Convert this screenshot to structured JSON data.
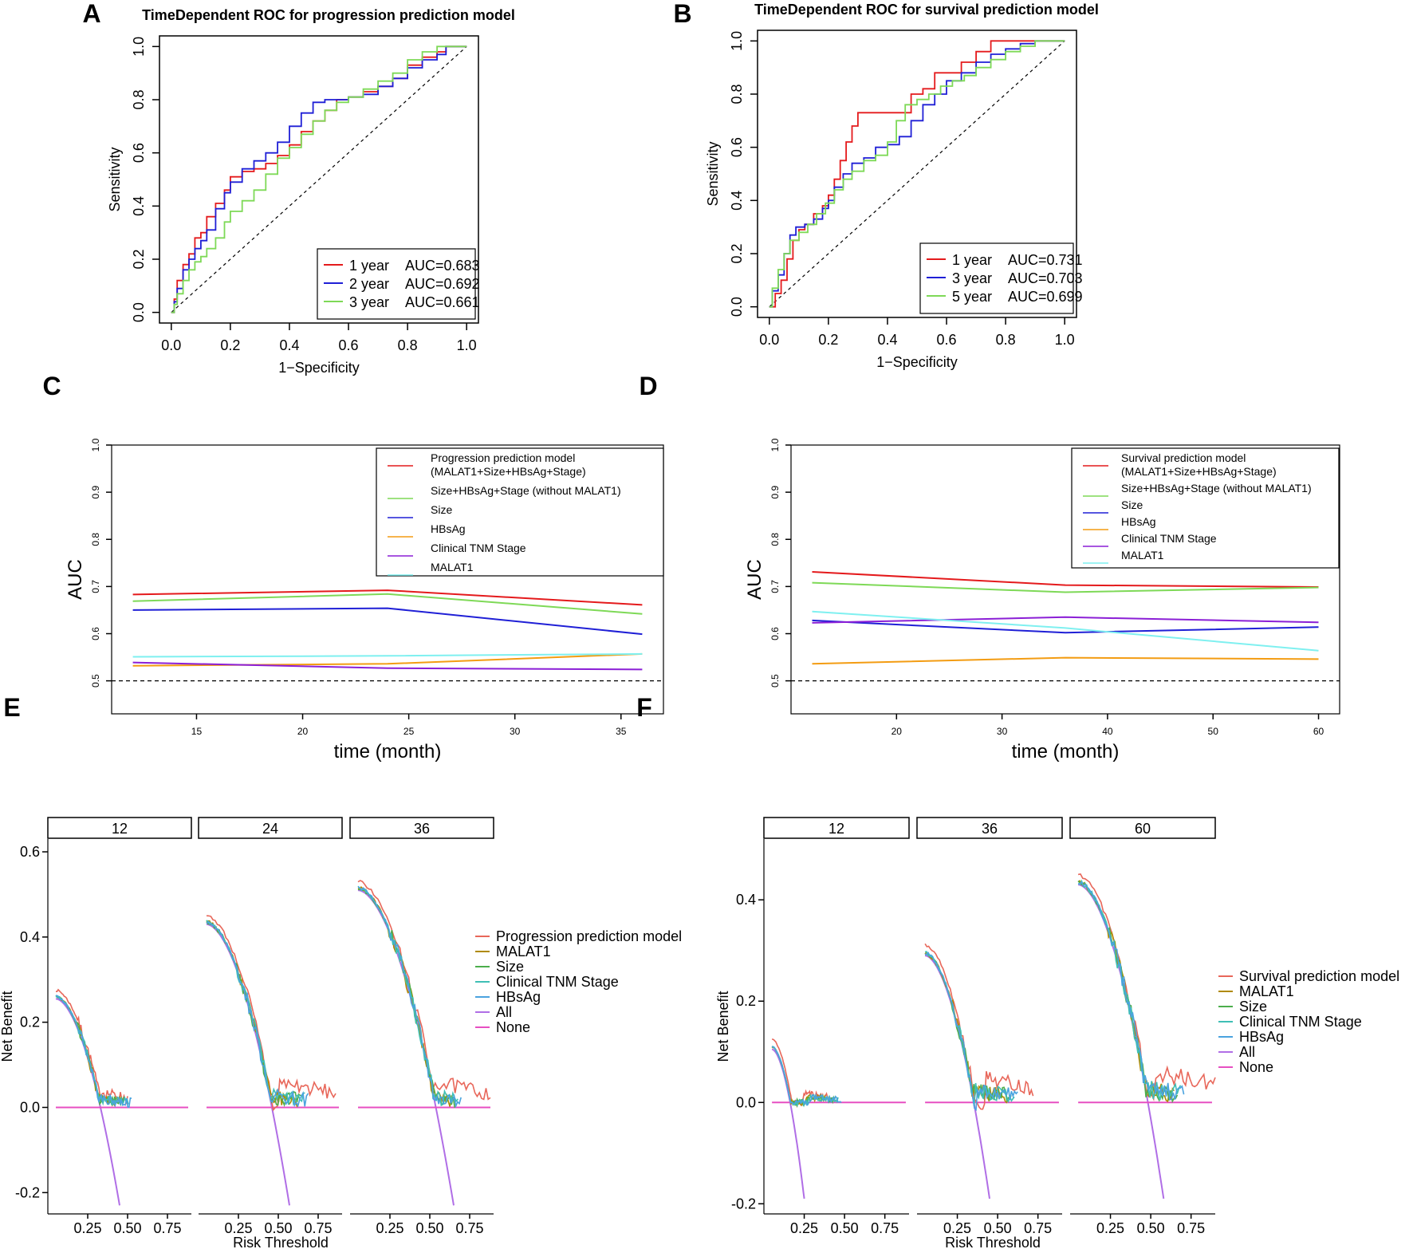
{
  "figure": {
    "panel_letters": [
      "A",
      "B",
      "C",
      "D",
      "E",
      "F"
    ]
  },
  "chart_data": [
    {
      "panel": "A",
      "type": "line",
      "title": "TimeDependent ROC for progression prediction model",
      "xlabel": "1−Specificity",
      "ylabel": "Sensitivity",
      "xlim": [
        0,
        1
      ],
      "ylim": [
        0,
        1
      ],
      "ticks": [
        "0.0",
        "0.2",
        "0.4",
        "0.6",
        "0.8",
        "1.0"
      ],
      "legend_position": "bottom-right",
      "series": [
        {
          "name": "1 year",
          "auc": "AUC=0.683",
          "color": "#e41a1c",
          "points": [
            [
              0,
              0
            ],
            [
              0.01,
              0.05
            ],
            [
              0.02,
              0.12
            ],
            [
              0.04,
              0.18
            ],
            [
              0.06,
              0.22
            ],
            [
              0.08,
              0.28
            ],
            [
              0.1,
              0.3
            ],
            [
              0.12,
              0.36
            ],
            [
              0.15,
              0.41
            ],
            [
              0.18,
              0.46
            ],
            [
              0.2,
              0.51
            ],
            [
              0.24,
              0.53
            ],
            [
              0.28,
              0.54
            ],
            [
              0.32,
              0.56
            ],
            [
              0.36,
              0.59
            ],
            [
              0.4,
              0.63
            ],
            [
              0.44,
              0.68
            ],
            [
              0.48,
              0.72
            ],
            [
              0.52,
              0.76
            ],
            [
              0.56,
              0.8
            ],
            [
              0.6,
              0.81
            ],
            [
              0.65,
              0.83
            ],
            [
              0.7,
              0.85
            ],
            [
              0.75,
              0.88
            ],
            [
              0.8,
              0.93
            ],
            [
              0.85,
              0.96
            ],
            [
              0.9,
              0.98
            ],
            [
              0.93,
              1.0
            ],
            [
              1.0,
              1.0
            ]
          ]
        },
        {
          "name": "2 year",
          "auc": "AUC=0.692",
          "color": "#1f1fd6",
          "points": [
            [
              0,
              0
            ],
            [
              0.01,
              0.04
            ],
            [
              0.02,
              0.09
            ],
            [
              0.04,
              0.16
            ],
            [
              0.06,
              0.2
            ],
            [
              0.08,
              0.24
            ],
            [
              0.1,
              0.27
            ],
            [
              0.12,
              0.31
            ],
            [
              0.15,
              0.39
            ],
            [
              0.18,
              0.45
            ],
            [
              0.2,
              0.49
            ],
            [
              0.24,
              0.54
            ],
            [
              0.28,
              0.57
            ],
            [
              0.32,
              0.6
            ],
            [
              0.36,
              0.64
            ],
            [
              0.4,
              0.7
            ],
            [
              0.44,
              0.75
            ],
            [
              0.48,
              0.79
            ],
            [
              0.52,
              0.8
            ],
            [
              0.56,
              0.8
            ],
            [
              0.6,
              0.81
            ],
            [
              0.65,
              0.82
            ],
            [
              0.7,
              0.85
            ],
            [
              0.75,
              0.88
            ],
            [
              0.8,
              0.92
            ],
            [
              0.85,
              0.95
            ],
            [
              0.9,
              0.97
            ],
            [
              0.93,
              1.0
            ],
            [
              1.0,
              1.0
            ]
          ]
        },
        {
          "name": "3 year",
          "auc": "AUC=0.661",
          "color": "#7ed957",
          "points": [
            [
              0,
              0
            ],
            [
              0.01,
              0.03
            ],
            [
              0.02,
              0.07
            ],
            [
              0.04,
              0.12
            ],
            [
              0.06,
              0.16
            ],
            [
              0.08,
              0.19
            ],
            [
              0.1,
              0.21
            ],
            [
              0.12,
              0.24
            ],
            [
              0.15,
              0.28
            ],
            [
              0.18,
              0.34
            ],
            [
              0.2,
              0.38
            ],
            [
              0.24,
              0.42
            ],
            [
              0.28,
              0.46
            ],
            [
              0.32,
              0.52
            ],
            [
              0.36,
              0.58
            ],
            [
              0.4,
              0.62
            ],
            [
              0.44,
              0.67
            ],
            [
              0.48,
              0.72
            ],
            [
              0.52,
              0.76
            ],
            [
              0.56,
              0.79
            ],
            [
              0.6,
              0.81
            ],
            [
              0.65,
              0.84
            ],
            [
              0.7,
              0.87
            ],
            [
              0.75,
              0.9
            ],
            [
              0.8,
              0.95
            ],
            [
              0.85,
              0.98
            ],
            [
              0.9,
              1.0
            ],
            [
              1.0,
              1.0
            ]
          ]
        }
      ]
    },
    {
      "panel": "B",
      "type": "line",
      "title": "TimeDependent ROC for survival prediction model",
      "xlabel": "1−Specificity",
      "ylabel": "Sensitivity",
      "xlim": [
        0,
        1
      ],
      "ylim": [
        0,
        1
      ],
      "ticks": [
        "0.0",
        "0.2",
        "0.4",
        "0.6",
        "0.8",
        "1.0"
      ],
      "legend_position": "bottom-right",
      "series": [
        {
          "name": "1 year",
          "auc": "AUC=0.731",
          "color": "#e41a1c",
          "points": [
            [
              0,
              0
            ],
            [
              0.02,
              0.05
            ],
            [
              0.04,
              0.1
            ],
            [
              0.06,
              0.18
            ],
            [
              0.08,
              0.25
            ],
            [
              0.1,
              0.29
            ],
            [
              0.12,
              0.31
            ],
            [
              0.15,
              0.35
            ],
            [
              0.18,
              0.38
            ],
            [
              0.2,
              0.42
            ],
            [
              0.22,
              0.48
            ],
            [
              0.24,
              0.55
            ],
            [
              0.26,
              0.62
            ],
            [
              0.28,
              0.68
            ],
            [
              0.3,
              0.73
            ],
            [
              0.35,
              0.73
            ],
            [
              0.4,
              0.73
            ],
            [
              0.44,
              0.73
            ],
            [
              0.48,
              0.8
            ],
            [
              0.52,
              0.82
            ],
            [
              0.56,
              0.88
            ],
            [
              0.6,
              0.88
            ],
            [
              0.65,
              0.92
            ],
            [
              0.7,
              0.96
            ],
            [
              0.75,
              1.0
            ],
            [
              0.9,
              1.0
            ],
            [
              1.0,
              1.0
            ]
          ]
        },
        {
          "name": "3 year",
          "auc": "AUC=0.703",
          "color": "#1f1fd6",
          "points": [
            [
              0,
              0
            ],
            [
              0.01,
              0.06
            ],
            [
              0.03,
              0.12
            ],
            [
              0.05,
              0.2
            ],
            [
              0.07,
              0.27
            ],
            [
              0.09,
              0.3
            ],
            [
              0.12,
              0.31
            ],
            [
              0.15,
              0.33
            ],
            [
              0.18,
              0.37
            ],
            [
              0.2,
              0.4
            ],
            [
              0.22,
              0.45
            ],
            [
              0.25,
              0.5
            ],
            [
              0.28,
              0.54
            ],
            [
              0.32,
              0.56
            ],
            [
              0.36,
              0.6
            ],
            [
              0.4,
              0.61
            ],
            [
              0.44,
              0.64
            ],
            [
              0.48,
              0.7
            ],
            [
              0.52,
              0.76
            ],
            [
              0.56,
              0.8
            ],
            [
              0.6,
              0.85
            ],
            [
              0.65,
              0.88
            ],
            [
              0.7,
              0.92
            ],
            [
              0.75,
              0.95
            ],
            [
              0.8,
              0.97
            ],
            [
              0.85,
              0.99
            ],
            [
              0.9,
              1.0
            ],
            [
              1.0,
              1.0
            ]
          ]
        },
        {
          "name": "5 year",
          "auc": "AUC=0.699",
          "color": "#7ed957",
          "points": [
            [
              0,
              0
            ],
            [
              0.01,
              0.07
            ],
            [
              0.03,
              0.14
            ],
            [
              0.05,
              0.2
            ],
            [
              0.07,
              0.25
            ],
            [
              0.1,
              0.28
            ],
            [
              0.13,
              0.31
            ],
            [
              0.16,
              0.35
            ],
            [
              0.19,
              0.39
            ],
            [
              0.22,
              0.44
            ],
            [
              0.25,
              0.48
            ],
            [
              0.28,
              0.51
            ],
            [
              0.32,
              0.55
            ],
            [
              0.36,
              0.57
            ],
            [
              0.4,
              0.62
            ],
            [
              0.43,
              0.7
            ],
            [
              0.46,
              0.76
            ],
            [
              0.5,
              0.78
            ],
            [
              0.54,
              0.8
            ],
            [
              0.58,
              0.83
            ],
            [
              0.62,
              0.85
            ],
            [
              0.66,
              0.87
            ],
            [
              0.7,
              0.9
            ],
            [
              0.75,
              0.93
            ],
            [
              0.8,
              0.96
            ],
            [
              0.85,
              0.98
            ],
            [
              0.9,
              1.0
            ],
            [
              1.0,
              1.0
            ]
          ]
        }
      ]
    },
    {
      "panel": "C",
      "type": "line",
      "xlabel": "time (month)",
      "ylabel": "AUC",
      "xlim": [
        11,
        37
      ],
      "ylim": [
        0.43,
        1.0
      ],
      "xticks": [
        15,
        20,
        25,
        30,
        35
      ],
      "yticks": [
        "0.5",
        "0.6",
        "0.7",
        "0.8",
        "0.9",
        "1.0"
      ],
      "reference_line": 0.5,
      "legend_position": "top-right",
      "x": [
        12,
        24,
        36
      ],
      "series": [
        {
          "name": "Progression prediction model",
          "name2": "(MALAT1+Size+HBsAg+Stage)",
          "color": "#e41a1c",
          "values": [
            0.683,
            0.692,
            0.661
          ]
        },
        {
          "name": "Size+HBsAg+Stage (without MALAT1)",
          "color": "#7ed957",
          "values": [
            0.669,
            0.684,
            0.642
          ]
        },
        {
          "name": "Size",
          "color": "#1f1fd6",
          "values": [
            0.65,
            0.654,
            0.599
          ]
        },
        {
          "name": "HBsAg",
          "color": "#f39c12",
          "values": [
            0.532,
            0.536,
            0.557
          ]
        },
        {
          "name": "Clinical TNM Stage",
          "color": "#8b1fd6",
          "values": [
            0.539,
            0.527,
            0.524
          ]
        },
        {
          "name": "MALAT1",
          "color": "#7ff0f0",
          "values": [
            0.551,
            0.553,
            0.557
          ]
        }
      ]
    },
    {
      "panel": "D",
      "type": "line",
      "xlabel": "time (month)",
      "ylabel": "AUC",
      "xlim": [
        10,
        62
      ],
      "ylim": [
        0.43,
        1.0
      ],
      "xticks": [
        20,
        30,
        40,
        50,
        60
      ],
      "yticks": [
        "0.5",
        "0.6",
        "0.7",
        "0.8",
        "0.9",
        "1.0"
      ],
      "reference_line": 0.5,
      "legend_position": "top-right",
      "x": [
        12,
        36,
        60
      ],
      "series": [
        {
          "name": "Survival prediction model",
          "name2": "(MALAT1+Size+HBsAg+Stage)",
          "color": "#e41a1c",
          "values": [
            0.731,
            0.703,
            0.699
          ]
        },
        {
          "name": "Size+HBsAg+Stage (without MALAT1)",
          "color": "#7ed957",
          "values": [
            0.708,
            0.688,
            0.698
          ]
        },
        {
          "name": "Size",
          "color": "#1f1fd6",
          "values": [
            0.628,
            0.602,
            0.614
          ]
        },
        {
          "name": "HBsAg",
          "color": "#f39c12",
          "values": [
            0.536,
            0.549,
            0.546
          ]
        },
        {
          "name": "Clinical TNM Stage",
          "color": "#8b1fd6",
          "values": [
            0.623,
            0.635,
            0.624
          ]
        },
        {
          "name": "MALAT1",
          "color": "#7ff0f0",
          "values": [
            0.647,
            0.612,
            0.564
          ]
        }
      ]
    },
    {
      "panel": "E",
      "type": "line",
      "subtype": "decision-curve",
      "xlabel": "Risk Threshold",
      "ylabel": "Net Benefit",
      "xlim": [
        0,
        0.9
      ],
      "ylim": [
        -0.25,
        0.63
      ],
      "xticks": [
        "0.25",
        "0.50",
        "0.75"
      ],
      "yticks": [
        "-0.2",
        "0.0",
        "0.2",
        "0.4",
        "0.6"
      ],
      "facets": [
        {
          "label": "12",
          "all_start": 0.255,
          "all_end_x": 0.45,
          "all_end_y": -0.23,
          "model_noise": 0.02,
          "model_end": 0.5
        },
        {
          "label": "24",
          "all_start": 0.43,
          "all_end_x": 0.57,
          "all_end_y": -0.23,
          "model_noise": 0.03,
          "model_end": 0.86
        },
        {
          "label": "36",
          "all_start": 0.51,
          "all_end_x": 0.65,
          "all_end_y": -0.23,
          "model_noise": 0.03,
          "model_end": 0.88
        }
      ],
      "legend": [
        {
          "name": "Progression prediction model",
          "color": "#e8675a"
        },
        {
          "name": "MALAT1",
          "color": "#b08a00"
        },
        {
          "name": "Size",
          "color": "#4cae4c"
        },
        {
          "name": "Clinical TNM Stage",
          "color": "#3fbfb5"
        },
        {
          "name": "HBsAg",
          "color": "#4aa3df"
        },
        {
          "name": "All",
          "color": "#b06ee6"
        },
        {
          "name": "None",
          "color": "#e74fc2"
        }
      ]
    },
    {
      "panel": "F",
      "type": "line",
      "subtype": "decision-curve",
      "xlabel": "Risk Threshold",
      "ylabel": "Net Benefit",
      "xlim": [
        0,
        0.9
      ],
      "ylim": [
        -0.22,
        0.52
      ],
      "xticks": [
        "0.25",
        "0.50",
        "0.75"
      ],
      "yticks": [
        "-0.2",
        "0.0",
        "0.2",
        "0.4"
      ],
      "facets": [
        {
          "label": "12",
          "all_start": 0.105,
          "all_end_x": 0.25,
          "all_end_y": -0.19,
          "model_noise": 0.01,
          "model_end": 0.4
        },
        {
          "label": "36",
          "all_start": 0.29,
          "all_end_x": 0.45,
          "all_end_y": -0.19,
          "model_noise": 0.025,
          "model_end": 0.72
        },
        {
          "label": "60",
          "all_start": 0.43,
          "all_end_x": 0.58,
          "all_end_y": -0.19,
          "model_noise": 0.03,
          "model_end": 0.9
        }
      ],
      "legend": [
        {
          "name": "Survival prediction model",
          "color": "#e8675a"
        },
        {
          "name": "MALAT1",
          "color": "#b08a00"
        },
        {
          "name": "Size",
          "color": "#4cae4c"
        },
        {
          "name": "Clinical TNM Stage",
          "color": "#3fbfb5"
        },
        {
          "name": "HBsAg",
          "color": "#4aa3df"
        },
        {
          "name": "All",
          "color": "#b06ee6"
        },
        {
          "name": "None",
          "color": "#e74fc2"
        }
      ]
    }
  ]
}
